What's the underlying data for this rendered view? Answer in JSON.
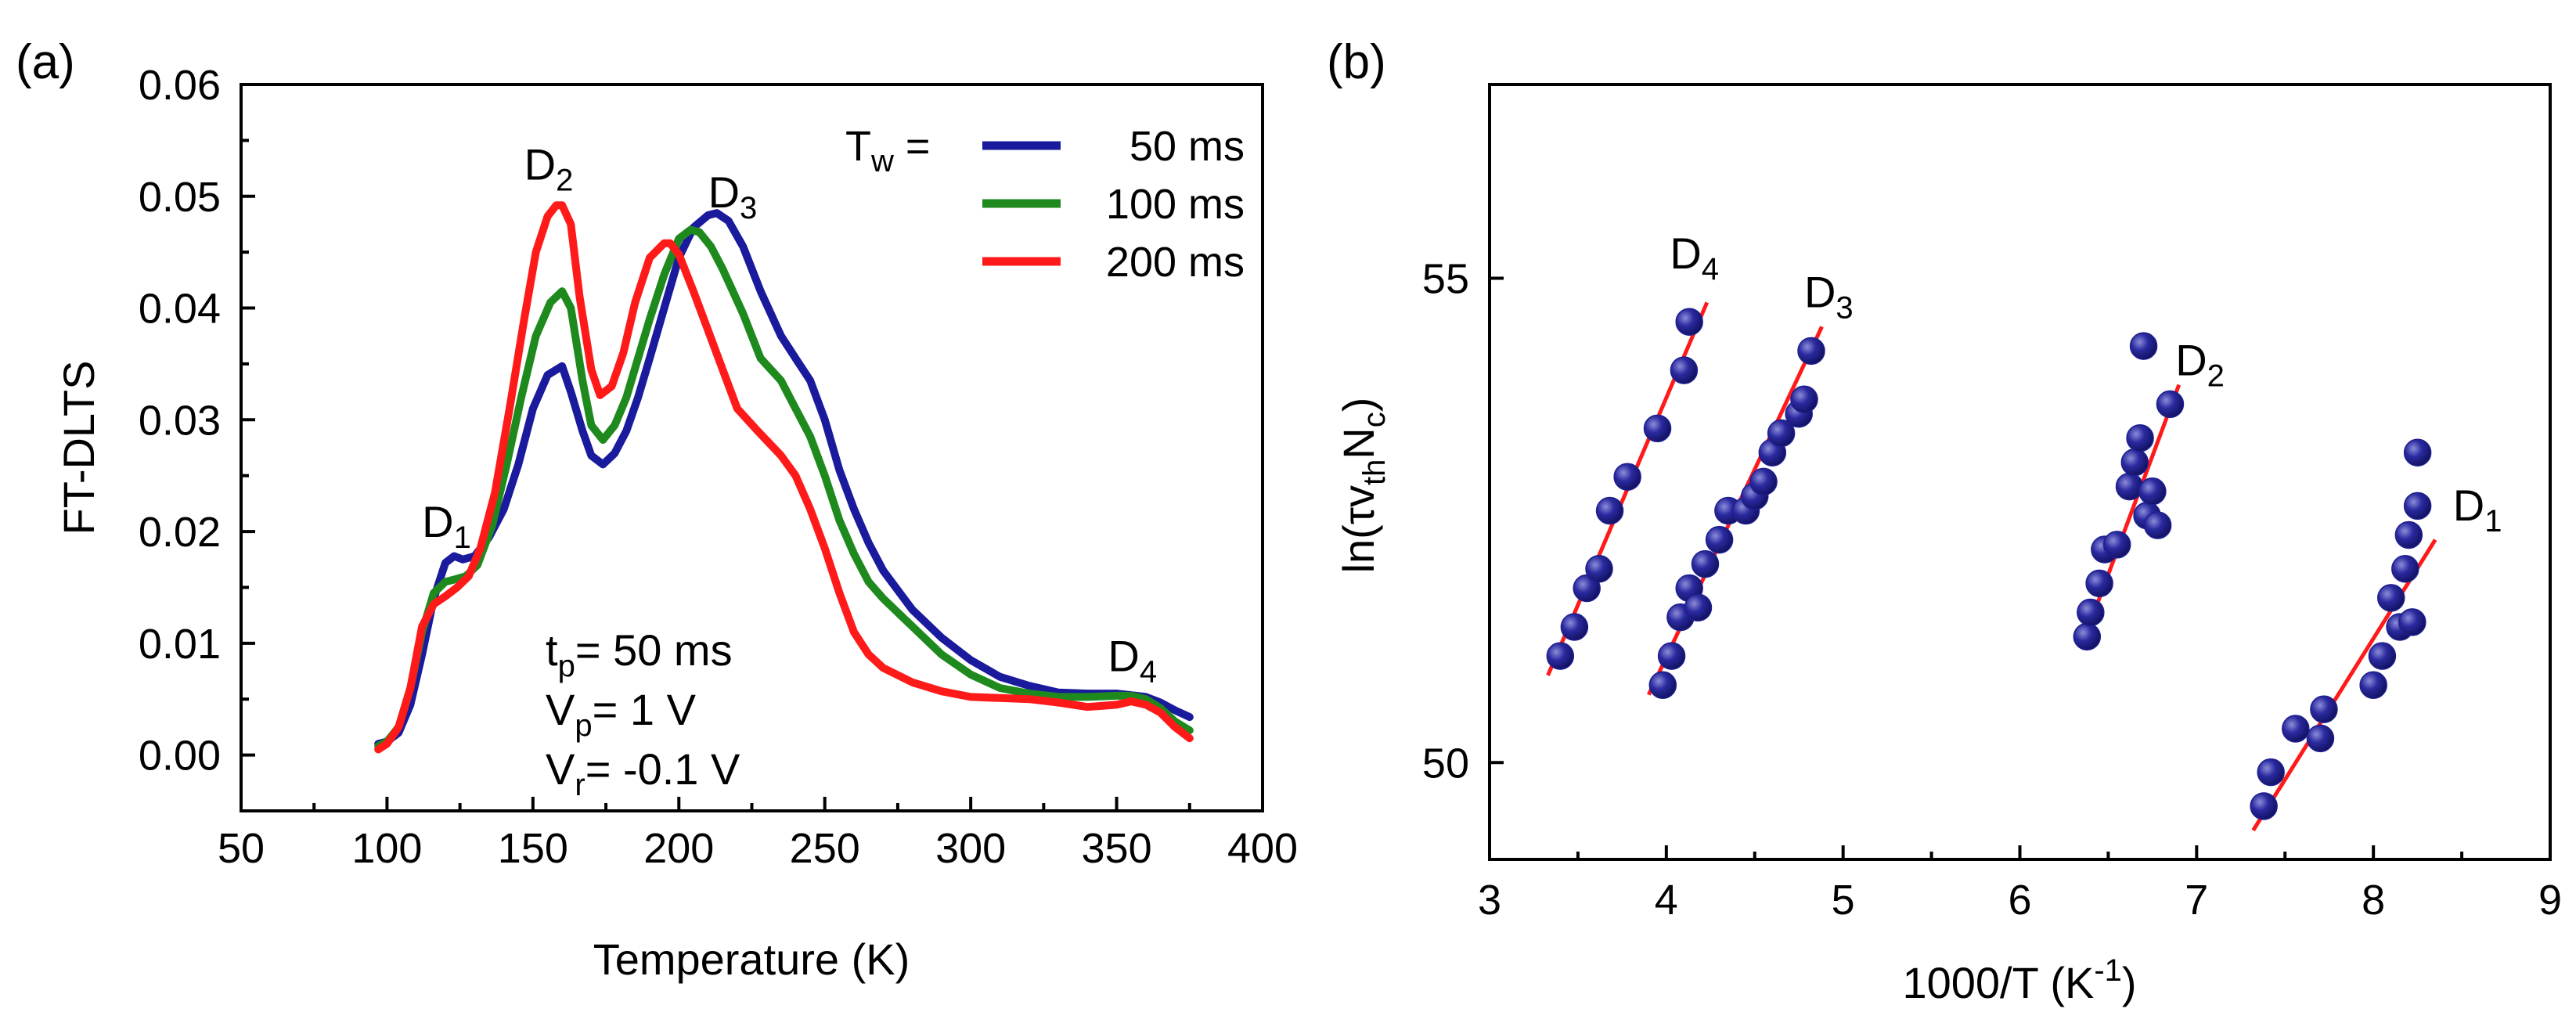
{
  "chart_data": [
    {
      "type": "line",
      "panel_label": "(a)",
      "xlabel": "Temperature (K)",
      "ylabel": "FT-DLTS",
      "xlim": [
        50,
        400
      ],
      "ylim": [
        -0.005,
        0.06
      ],
      "xticks": [
        50,
        100,
        150,
        200,
        250,
        300,
        350,
        400
      ],
      "xtick_labels": [
        "50",
        "100",
        "150",
        "200",
        "250",
        "300",
        "350",
        "400"
      ],
      "yticks": [
        0.0,
        0.01,
        0.02,
        0.03,
        0.04,
        0.05,
        0.06
      ],
      "ytick_labels": [
        "0.00",
        "0.01",
        "0.02",
        "0.03",
        "0.04",
        "0.05",
        "0.06"
      ],
      "legend": {
        "title": "T",
        "title_sub": "w",
        "title_suffix": " =",
        "position": "top-right"
      },
      "series": [
        {
          "name": "50 ms",
          "color": "#1a1a9c",
          "x": [
            97,
            100,
            104,
            108,
            112,
            116,
            120,
            123,
            126,
            130,
            135,
            140,
            145,
            150,
            155,
            160,
            163,
            167,
            170,
            174,
            178,
            182,
            186,
            190,
            195,
            200,
            205,
            210,
            213,
            217,
            222,
            228,
            235,
            240,
            245,
            250,
            255,
            260,
            265,
            270,
            280,
            290,
            300,
            310,
            320,
            330,
            340,
            350,
            360,
            365,
            370,
            375
          ],
          "y": [
            0.001,
            0.0012,
            0.002,
            0.0045,
            0.009,
            0.014,
            0.0172,
            0.0178,
            0.0175,
            0.0178,
            0.0195,
            0.022,
            0.026,
            0.031,
            0.034,
            0.0348,
            0.0325,
            0.029,
            0.0268,
            0.026,
            0.027,
            0.029,
            0.032,
            0.0355,
            0.04,
            0.0445,
            0.0472,
            0.0483,
            0.0485,
            0.0478,
            0.0455,
            0.0415,
            0.0375,
            0.0355,
            0.0335,
            0.03,
            0.0255,
            0.022,
            0.019,
            0.0165,
            0.013,
            0.0105,
            0.0085,
            0.007,
            0.0062,
            0.0056,
            0.0055,
            0.0055,
            0.0052,
            0.0047,
            0.004,
            0.0034
          ]
        },
        {
          "name": "100 ms",
          "color": "#1e8a1e",
          "x": [
            97,
            100,
            104,
            108,
            112,
            116,
            120,
            123,
            127,
            131,
            136,
            141,
            146,
            151,
            156,
            160,
            163,
            167,
            170,
            174,
            178,
            182,
            186,
            190,
            195,
            200,
            204,
            207,
            211,
            215,
            222,
            228,
            235,
            240,
            245,
            250,
            255,
            260,
            265,
            270,
            280,
            290,
            300,
            310,
            320,
            330,
            340,
            350,
            355,
            360,
            365,
            370,
            375
          ],
          "y": [
            0.0008,
            0.0012,
            0.0025,
            0.006,
            0.011,
            0.0145,
            0.0155,
            0.0157,
            0.016,
            0.017,
            0.0205,
            0.026,
            0.032,
            0.0375,
            0.0405,
            0.0415,
            0.04,
            0.0335,
            0.0295,
            0.0282,
            0.0295,
            0.032,
            0.0355,
            0.039,
            0.043,
            0.0462,
            0.047,
            0.0468,
            0.0455,
            0.0435,
            0.0395,
            0.0355,
            0.0335,
            0.031,
            0.0285,
            0.025,
            0.021,
            0.018,
            0.0155,
            0.014,
            0.0115,
            0.009,
            0.0072,
            0.006,
            0.0055,
            0.0052,
            0.0052,
            0.0053,
            0.0053,
            0.005,
            0.0042,
            0.003,
            0.0022
          ]
        },
        {
          "name": "200 ms",
          "color": "#ff1a1a",
          "x": [
            97,
            100,
            104,
            108,
            112,
            116,
            120,
            124,
            128,
            132,
            137,
            142,
            147,
            151,
            155,
            158,
            160,
            163,
            166,
            170,
            173,
            177,
            181,
            185,
            190,
            195,
            197,
            200,
            205,
            210,
            215,
            220,
            227,
            235,
            240,
            245,
            250,
            255,
            260,
            265,
            270,
            280,
            290,
            300,
            310,
            320,
            330,
            340,
            350,
            355,
            360,
            365,
            370,
            375
          ],
          "y": [
            0.0005,
            0.001,
            0.0025,
            0.006,
            0.0115,
            0.0135,
            0.0142,
            0.015,
            0.016,
            0.0185,
            0.0235,
            0.031,
            0.039,
            0.045,
            0.0482,
            0.0492,
            0.0492,
            0.0475,
            0.041,
            0.0345,
            0.0322,
            0.033,
            0.036,
            0.0405,
            0.0445,
            0.0458,
            0.0458,
            0.0448,
            0.0415,
            0.038,
            0.0345,
            0.031,
            0.029,
            0.0268,
            0.025,
            0.022,
            0.0185,
            0.0145,
            0.011,
            0.009,
            0.0078,
            0.0065,
            0.0057,
            0.0052,
            0.0051,
            0.005,
            0.0047,
            0.0043,
            0.0045,
            0.0048,
            0.0045,
            0.0038,
            0.0025,
            0.0015
          ]
        }
      ],
      "peak_labels": [
        {
          "base": "D",
          "sub": "1",
          "x": 112,
          "y": 0.0195
        },
        {
          "base": "D",
          "sub": "2",
          "x": 147,
          "y": 0.0515
        },
        {
          "base": "D",
          "sub": "3",
          "x": 210,
          "y": 0.049
        },
        {
          "base": "D",
          "sub": "4",
          "x": 347,
          "y": 0.0075
        }
      ],
      "conditions": [
        {
          "base": "t",
          "sub": "p",
          "rest": "= 50 ms"
        },
        {
          "base": "V",
          "sub": "p",
          "rest": "= 1 V"
        },
        {
          "base": "V",
          "sub": "r",
          "rest": "= -0.1 V"
        }
      ]
    },
    {
      "type": "scatter",
      "panel_label": "(b)",
      "xlabel_base": "1000/T (K",
      "xlabel_sup": "-1",
      "xlabel_end": ")",
      "ylabel_parts": [
        {
          "t": "ln(τv",
          "s": null
        },
        {
          "t": "th",
          "s": "sub"
        },
        {
          "t": "N",
          "s": null
        },
        {
          "t": "c",
          "s": "sub"
        },
        {
          "t": ")",
          "s": null
        }
      ],
      "xlim": [
        3,
        9
      ],
      "ylim": [
        49,
        57
      ],
      "xticks": [
        3,
        4,
        5,
        6,
        7,
        8,
        9
      ],
      "xtick_labels": [
        "3",
        "4",
        "5",
        "6",
        "7",
        "8",
        "9"
      ],
      "yticks": [
        50,
        55
      ],
      "ytick_labels": [
        "50",
        "55"
      ],
      "marker_color": "#1f1f8f",
      "fit_color": "#ff1a1a",
      "groups": [
        {
          "name": "D4",
          "points": [
            [
              3.4,
              51.1
            ],
            [
              3.48,
              51.4
            ],
            [
              3.55,
              51.8
            ],
            [
              3.62,
              52.0
            ],
            [
              3.68,
              52.6
            ],
            [
              3.78,
              52.95
            ],
            [
              3.95,
              53.45
            ],
            [
              4.1,
              54.05
            ],
            [
              4.13,
              54.55
            ]
          ],
          "fit": [
            [
              3.33,
              50.9
            ],
            [
              4.23,
              54.75
            ]
          ],
          "label_sub": "4",
          "label_x": 4.02,
          "label_y": 55.1
        },
        {
          "name": "D3",
          "points": [
            [
              3.98,
              50.8
            ],
            [
              4.03,
              51.1
            ],
            [
              4.08,
              51.5
            ],
            [
              4.13,
              51.8
            ],
            [
              4.18,
              51.6
            ],
            [
              4.22,
              52.05
            ],
            [
              4.3,
              52.3
            ],
            [
              4.35,
              52.6
            ],
            [
              4.45,
              52.6
            ],
            [
              4.5,
              52.75
            ],
            [
              4.55,
              52.9
            ],
            [
              4.6,
              53.2
            ],
            [
              4.65,
              53.4
            ],
            [
              4.75,
              53.6
            ],
            [
              4.78,
              53.75
            ],
            [
              4.82,
              54.25
            ]
          ],
          "fit": [
            [
              3.9,
              50.7
            ],
            [
              4.88,
              54.5
            ]
          ],
          "label_sub": "3",
          "label_x": 4.78,
          "label_y": 54.7
        },
        {
          "name": "D2",
          "points": [
            [
              6.38,
              51.3
            ],
            [
              6.4,
              51.55
            ],
            [
              6.45,
              51.85
            ],
            [
              6.48,
              52.2
            ],
            [
              6.55,
              52.25
            ],
            [
              6.62,
              52.85
            ],
            [
              6.65,
              53.1
            ],
            [
              6.68,
              53.35
            ],
            [
              6.7,
              54.3
            ],
            [
              6.72,
              52.55
            ],
            [
              6.75,
              52.8
            ],
            [
              6.78,
              52.45
            ],
            [
              6.85,
              53.7
            ]
          ],
          "fit": [
            [
              6.42,
              51.55
            ],
            [
              6.9,
              53.9
            ]
          ],
          "label_sub": "2",
          "label_x": 6.88,
          "label_y": 54.0
        },
        {
          "name": "D1",
          "points": [
            [
              7.38,
              49.55
            ],
            [
              7.42,
              49.9
            ],
            [
              7.56,
              50.35
            ],
            [
              7.7,
              50.25
            ],
            [
              7.72,
              50.55
            ],
            [
              8.0,
              50.8
            ],
            [
              8.05,
              51.1
            ],
            [
              8.1,
              51.7
            ],
            [
              8.15,
              51.4
            ],
            [
              8.18,
              52.0
            ],
            [
              8.2,
              52.35
            ],
            [
              8.22,
              51.45
            ],
            [
              8.25,
              52.65
            ],
            [
              8.25,
              53.2
            ]
          ],
          "fit": [
            [
              7.32,
              49.3
            ],
            [
              8.35,
              52.3
            ]
          ],
          "label_sub": "1",
          "label_x": 8.45,
          "label_y": 52.5
        }
      ]
    }
  ]
}
